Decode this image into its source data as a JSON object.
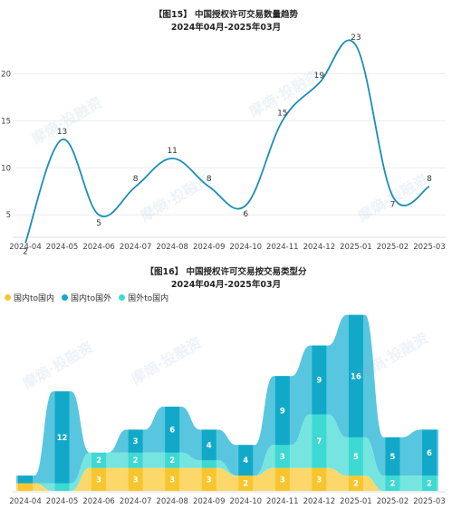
{
  "watermark": "摩熵·投融资",
  "chart_data": [
    {
      "type": "line",
      "title": "【图15】 中国授权许可交易数量趋势",
      "subtitle": "2024年04月-2025年03月",
      "x": [
        "2024-04",
        "2024-05",
        "2024-06",
        "2024-07",
        "2024-08",
        "2024-09",
        "2024-10",
        "2024-11",
        "2024-12",
        "2025-01",
        "2025-02",
        "2025-03"
      ],
      "y_ticks": [
        5,
        10,
        15,
        20
      ],
      "ylim": [
        3,
        23.5
      ],
      "series": [
        {
          "values": [
            2,
            13,
            5,
            8,
            11,
            8,
            6,
            15,
            19,
            23,
            7,
            8
          ],
          "color": "#1a8fb6"
        }
      ]
    },
    {
      "type": "area",
      "title": "【图16】 中国授权许可交易按交易类型分",
      "subtitle": "2024年04月-2025年03月",
      "legend_position": "top-left",
      "x": [
        "2024-04",
        "2024-05",
        "2024-06",
        "2024-07",
        "2024-08",
        "2024-09",
        "2024-10",
        "2024-11",
        "2024-12",
        "2025-01",
        "2025-02",
        "2025-03"
      ],
      "series": [
        {
          "name": "国内to国内",
          "values": [
            1,
            0,
            3,
            3,
            3,
            3,
            2,
            3,
            3,
            2,
            0,
            0
          ],
          "color": "#f7c62f"
        },
        {
          "name": "国外to国内",
          "values": [
            0,
            1,
            2,
            2,
            2,
            1,
            0,
            3,
            7,
            5,
            2,
            2
          ],
          "color": "#3ed9d2"
        },
        {
          "name": "国内to国外",
          "values": [
            1,
            12,
            0,
            3,
            6,
            4,
            4,
            9,
            9,
            16,
            5,
            6
          ],
          "color": "#12a9c9"
        }
      ],
      "labels": [
        [
          null,
          null,
          "3",
          "3",
          "3",
          "3",
          "2",
          "3",
          "3",
          "2",
          null,
          null
        ],
        [
          null,
          null,
          "2",
          "2",
          "2",
          null,
          null,
          "3",
          "7",
          "5",
          "2",
          "2"
        ],
        [
          null,
          "12",
          null,
          "3",
          "6",
          "4",
          "4",
          "9",
          "9",
          "16",
          "5",
          "6"
        ]
      ]
    }
  ]
}
